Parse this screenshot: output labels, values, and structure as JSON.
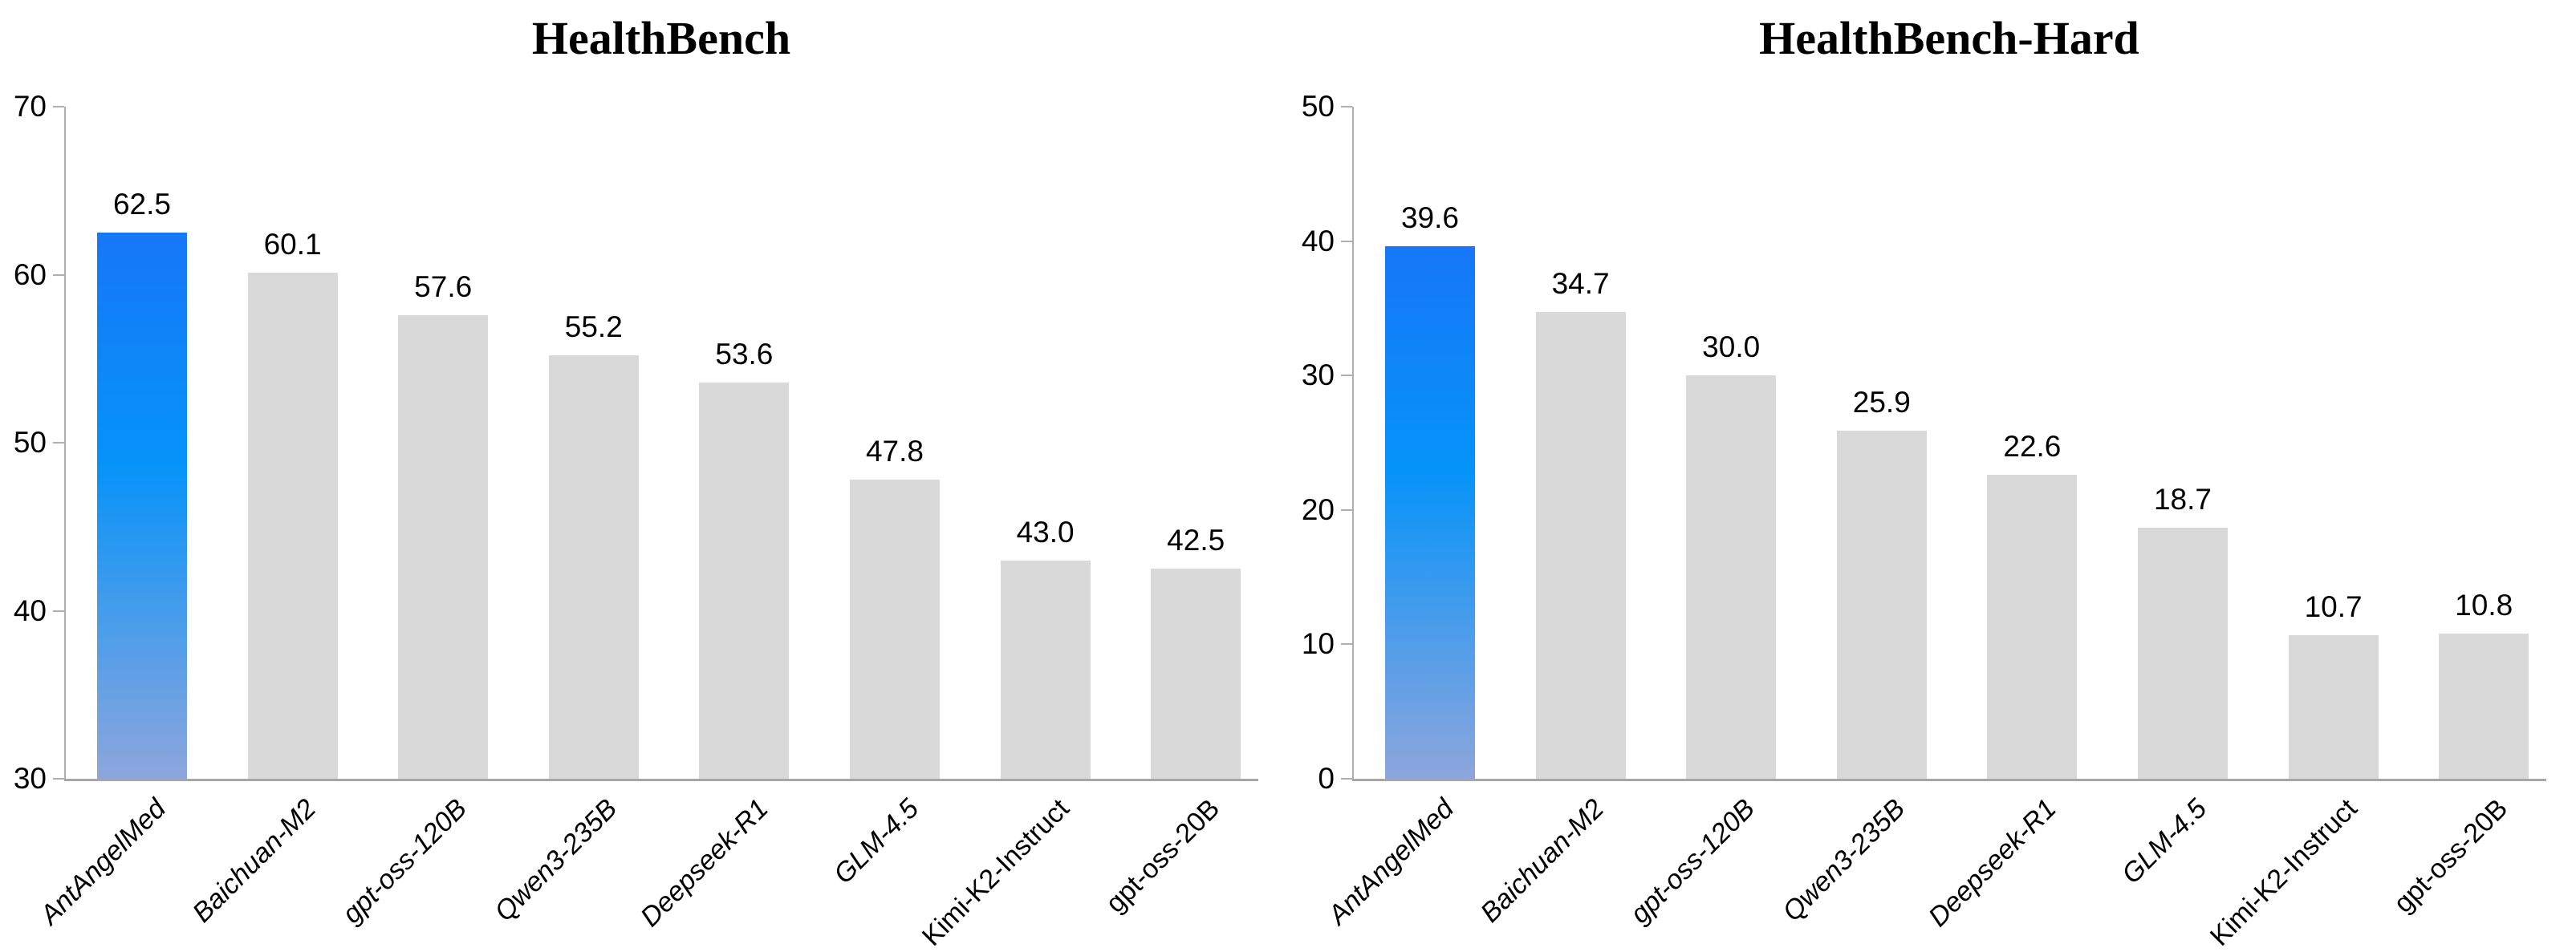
{
  "page": {
    "background": "#ffffff"
  },
  "chart_data": [
    {
      "type": "bar",
      "title": "HealthBench",
      "categories": [
        "AntAngelMed",
        "Baichuan-M2",
        "gpt-oss-120B",
        "Qwen3-235B",
        "Deepseek-R1",
        "GLM-4.5",
        "Kimi-K2-Instruct",
        "gpt-oss-20B"
      ],
      "values": [
        62.5,
        60.1,
        57.6,
        55.2,
        53.6,
        47.8,
        43.0,
        42.5
      ],
      "value_label_format": "one-decimal",
      "xlabel": "",
      "ylabel": "",
      "ylim": [
        30,
        70
      ],
      "yticks": [
        30,
        40,
        50,
        60,
        70
      ],
      "grid": false,
      "legend_position": "none",
      "highlight_index": 0,
      "highlight_category": "AntAngelMed"
    },
    {
      "type": "bar",
      "title": "HealthBench-Hard",
      "categories": [
        "AntAngelMed",
        "Baichuan-M2",
        "gpt-oss-120B",
        "Qwen3-235B",
        "Deepseek-R1",
        "GLM-4.5",
        "Kimi-K2-Instruct",
        "gpt-oss-20B"
      ],
      "values": [
        39.6,
        34.7,
        30.0,
        25.9,
        22.6,
        18.7,
        10.7,
        10.8
      ],
      "value_label_format": "one-decimal",
      "xlabel": "",
      "ylabel": "",
      "ylim": [
        0,
        50
      ],
      "yticks": [
        0,
        10,
        20,
        30,
        40,
        50
      ],
      "grid": false,
      "legend_position": "none",
      "highlight_index": 0,
      "highlight_category": "AntAngelMed"
    }
  ],
  "colors": {
    "highlight_top": "#1777F8",
    "highlight_mid": "#0593F9",
    "highlight_bottom": "#8DA6DC",
    "bar_default": "#D9D9D9",
    "axis_line": "#AFAFAF",
    "baseline": "#A6A6A6",
    "text": "#000000"
  }
}
